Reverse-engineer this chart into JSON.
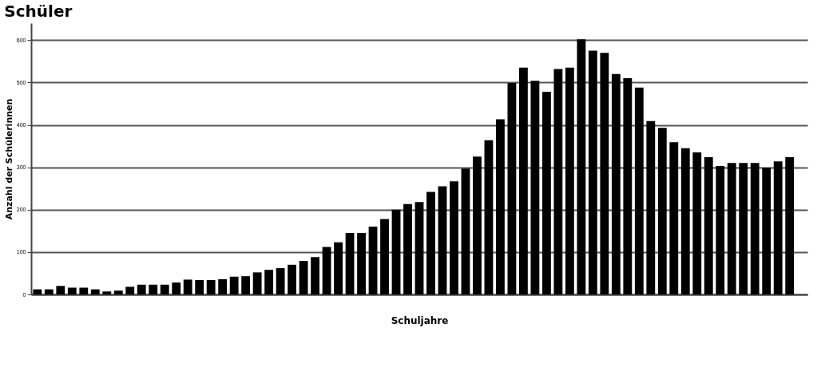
{
  "chart_data": {
    "type": "bar",
    "title": "Schüler",
    "xlabel": "Schuljahre",
    "ylabel": "Anzahl der Schülerinnen",
    "categories": [
      null,
      null,
      null,
      null,
      null,
      null,
      null,
      null,
      null,
      null,
      null,
      null,
      null,
      null,
      null,
      null,
      null,
      null,
      null,
      null,
      null,
      null,
      null,
      null,
      null,
      null,
      null,
      null,
      null,
      null,
      null,
      null,
      null,
      null,
      null,
      null,
      null,
      null,
      null,
      null,
      null,
      null,
      null,
      null,
      null,
      null,
      null,
      null,
      null,
      null,
      null,
      null,
      null,
      null,
      null,
      null,
      null,
      null,
      null,
      null,
      null,
      null,
      null,
      null,
      null,
      null,
      null
    ],
    "values": [
      12,
      12,
      20,
      16,
      16,
      12,
      7,
      9,
      18,
      23,
      23,
      23,
      28,
      35,
      34,
      34,
      36,
      42,
      43,
      52,
      58,
      62,
      70,
      79,
      88,
      112,
      123,
      145,
      145,
      160,
      178,
      200,
      213,
      218,
      242,
      255,
      267,
      297,
      325,
      364,
      413,
      499,
      535,
      504,
      478,
      532,
      535,
      602,
      575,
      570,
      520,
      510,
      488,
      409,
      393,
      359,
      345,
      335,
      324,
      303,
      310,
      310,
      310,
      299,
      314,
      324,
      null
    ],
    "color": "#000000",
    "ylim": [
      0,
      640
    ],
    "yticks": [
      0,
      100,
      200,
      300,
      400,
      500,
      600
    ],
    "grid": "y"
  }
}
